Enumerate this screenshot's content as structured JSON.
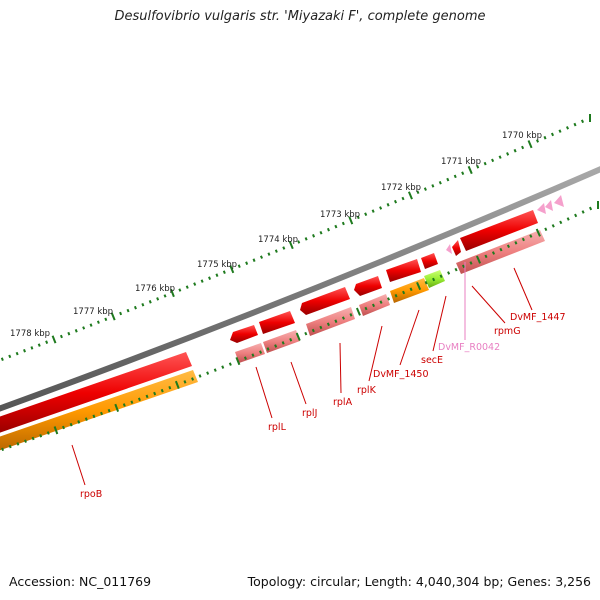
{
  "title": "Desulfovibrio vulgaris str. 'Miyazaki F', complete genome",
  "footer": {
    "accession": "Accession: NC_011769",
    "stats": "Topology: circular; Length: 4,040,304 bp; Genes: 3,256"
  },
  "kbp_ticks": [
    "1770 kbp",
    "1771 kbp",
    "1772 kbp",
    "1773 kbp",
    "1774 kbp",
    "1775 kbp",
    "1776 kbp",
    "1777 kbp",
    "1778 kbp"
  ],
  "genes": [
    {
      "name": "rpoB",
      "color": "#cc0000"
    },
    {
      "name": "rplL",
      "color": "#cc0000"
    },
    {
      "name": "rplJ",
      "color": "#cc0000"
    },
    {
      "name": "rplA",
      "color": "#cc0000"
    },
    {
      "name": "rplK",
      "color": "#cc0000"
    },
    {
      "name": "DvMF_1450",
      "color": "#cc0000"
    },
    {
      "name": "secE",
      "color": "#cc0000"
    },
    {
      "name": "DvMF_R0042",
      "color": "#e87fc2"
    },
    {
      "name": "rpmG",
      "color": "#cc0000"
    },
    {
      "name": "DvMF_1447",
      "color": "#cc0000"
    }
  ],
  "colors": {
    "backbone": "#7a7a7a",
    "cds": "#ee0000",
    "cog": "#f08080",
    "orange": "#ff9900",
    "green": "#99ee33",
    "trna": "#f5a0cc",
    "tick": "#1e7a1e"
  }
}
